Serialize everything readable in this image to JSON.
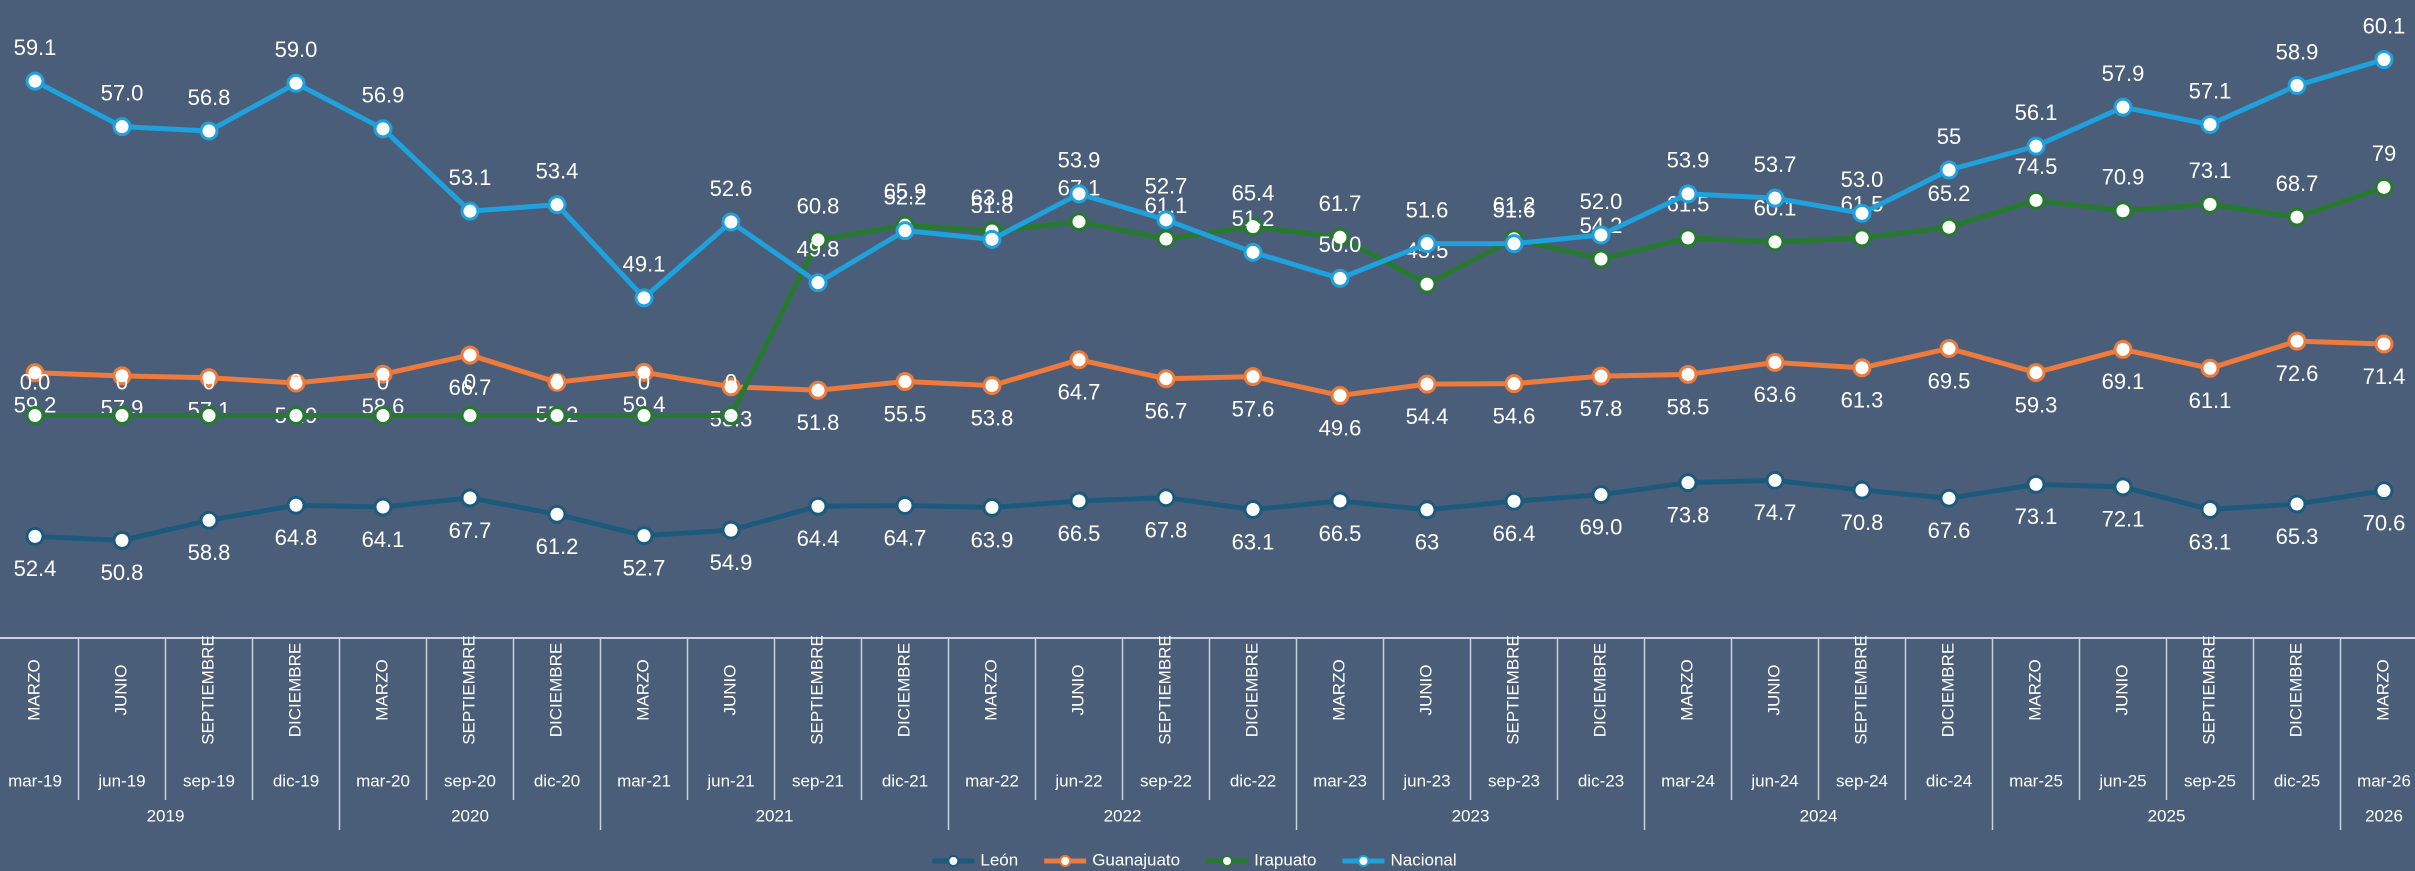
{
  "chart_data": {
    "type": "line",
    "categories": [
      "mar-19",
      "jun-19",
      "sep-19",
      "dic-19",
      "mar-20",
      "sep-20",
      "dic-20",
      "mar-21",
      "jun-21",
      "sep-21",
      "dic-21",
      "mar-22",
      "jun-22",
      "sep-22",
      "dic-22",
      "mar-23",
      "jun-23",
      "sep-23",
      "dic-23",
      "mar-24",
      "jun-24",
      "sep-24",
      "dic-24",
      "mar-25",
      "jun-25",
      "sep-25",
      "dic-25",
      "mar-26"
    ],
    "months": [
      "MARZO",
      "JUNIO",
      "SEPTIEMBRE",
      "DICIEMBRE",
      "MARZO",
      "SEPTIEMBRE",
      "DICIEMBRE",
      "MARZO",
      "JUNIO",
      "SEPTIEMBRE",
      "DICIEMBRE",
      "MARZO",
      "JUNIO",
      "SEPTIEMBRE",
      "DICIEMBRE",
      "MARZO",
      "JUNIO",
      "SEPTIEMBRE",
      "DICIEMBRE",
      "MARZO",
      "JUNIO",
      "SEPTIEMBRE",
      "DICIEMBRE",
      "MARZO",
      "JUNIO",
      "SEPTIEMBRE",
      "DICIEMBRE",
      "MARZO"
    ],
    "years": [
      "2019",
      null,
      null,
      null,
      "2020",
      null,
      null,
      "2021",
      null,
      null,
      null,
      "2022",
      null,
      null,
      null,
      "2023",
      null,
      null,
      null,
      "2024",
      null,
      null,
      null,
      "2025",
      null,
      null,
      null,
      "2026"
    ],
    "series": [
      {
        "name": "León",
        "color": "#1b5a7c",
        "label_position": "below",
        "ylim": [
          43,
          250
        ],
        "values": [
          52.4,
          50.8,
          58.8,
          64.8,
          64.1,
          67.7,
          61.2,
          52.7,
          54.9,
          64.4,
          64.7,
          63.9,
          66.5,
          67.8,
          63.1,
          66.5,
          63,
          66.4,
          69.0,
          73.8,
          74.7,
          70.8,
          67.6,
          73.1,
          72.1,
          63.1,
          65.3,
          70.6
        ],
        "value_labels": [
          "52.4",
          "50.8",
          "58.8",
          "64.8",
          "64.1",
          "67.7",
          "61.2",
          "52.7",
          "54.9",
          "64.4",
          "64.7",
          "63.9",
          "66.5",
          "67.8",
          "63.1",
          "66.5",
          "63",
          "66.4",
          "69.0",
          "73.8",
          "74.7",
          "70.8",
          "67.6",
          "73.1",
          "72.1",
          "63.1",
          "65.3",
          "70.6"
        ]
      },
      {
        "name": "Guanajuato",
        "color": "#ee7a3b",
        "label_position": "below",
        "ylim": [
          -20,
          200
        ],
        "values": [
          59.2,
          57.9,
          57.1,
          54.9,
          58.6,
          66.7,
          55.2,
          59.4,
          53.3,
          51.8,
          55.5,
          53.8,
          64.7,
          56.7,
          57.6,
          49.6,
          54.4,
          54.6,
          57.8,
          58.5,
          63.6,
          61.3,
          69.5,
          59.3,
          69.1,
          61.1,
          72.6,
          71.4
        ],
        "value_labels": [
          "59.2",
          "57.9",
          "57.1",
          "54.9",
          "58.6",
          "66.7",
          "55.2",
          "59.4",
          "53.3",
          "51.8",
          "55.5",
          "53.8",
          "64.7",
          "56.7",
          "57.6",
          "49.6",
          "54.4",
          "54.6",
          "57.8",
          "58.5",
          "63.6",
          "61.3",
          "69.5",
          "59.3",
          "69.1",
          "61.1",
          "72.6",
          "71.4"
        ]
      },
      {
        "name": "Irapuato",
        "color": "#267a2e",
        "label_position": "above",
        "ylim": [
          -50,
          130
        ],
        "values": [
          0.0,
          0,
          0,
          0,
          0,
          0,
          0,
          0,
          0,
          60.8,
          65.9,
          63.9,
          67.1,
          61.1,
          65.4,
          61.7,
          45.5,
          61.2,
          54.2,
          61.5,
          60.1,
          61.5,
          65.2,
          74.5,
          70.9,
          73.1,
          68.7,
          79
        ],
        "value_labels": [
          "0.0",
          "0",
          "0",
          "0",
          "0",
          "0",
          "0",
          "0",
          "0",
          "60.8",
          "65.9",
          "63.9",
          "67.1",
          "61.1",
          "65.4",
          "61.7",
          "45.5",
          "61.2",
          "54.2",
          "61.5",
          "60.1",
          "61.5",
          "65.2",
          "74.5",
          "70.9",
          "73.1",
          "68.7",
          "79"
        ]
      },
      {
        "name": "Nacional",
        "color": "#1ea1dc",
        "label_position": "above",
        "ylim": [
          37,
          61
        ],
        "values": [
          59.1,
          57.0,
          56.8,
          59.0,
          56.9,
          53.1,
          53.4,
          49.1,
          52.6,
          49.8,
          52.2,
          51.8,
          53.9,
          52.7,
          51.2,
          50.0,
          51.6,
          51.6,
          52.0,
          53.9,
          53.7,
          53.0,
          55,
          56.1,
          57.9,
          57.1,
          58.9,
          60.1
        ],
        "value_labels": [
          "59.1",
          "57.0",
          "56.8",
          "59.0",
          "56.9",
          "53.1",
          "53.4",
          "49.1",
          "52.6",
          "49.8",
          "52.2",
          "51.8",
          "53.9",
          "52.7",
          "51.2",
          "50.0",
          "51.6",
          "51.6",
          "52.0",
          "53.9",
          "53.7",
          "53.0",
          "55",
          "56.1",
          "57.9",
          "57.1",
          "58.9",
          "60.1"
        ]
      }
    ],
    "legend": "bottom"
  }
}
